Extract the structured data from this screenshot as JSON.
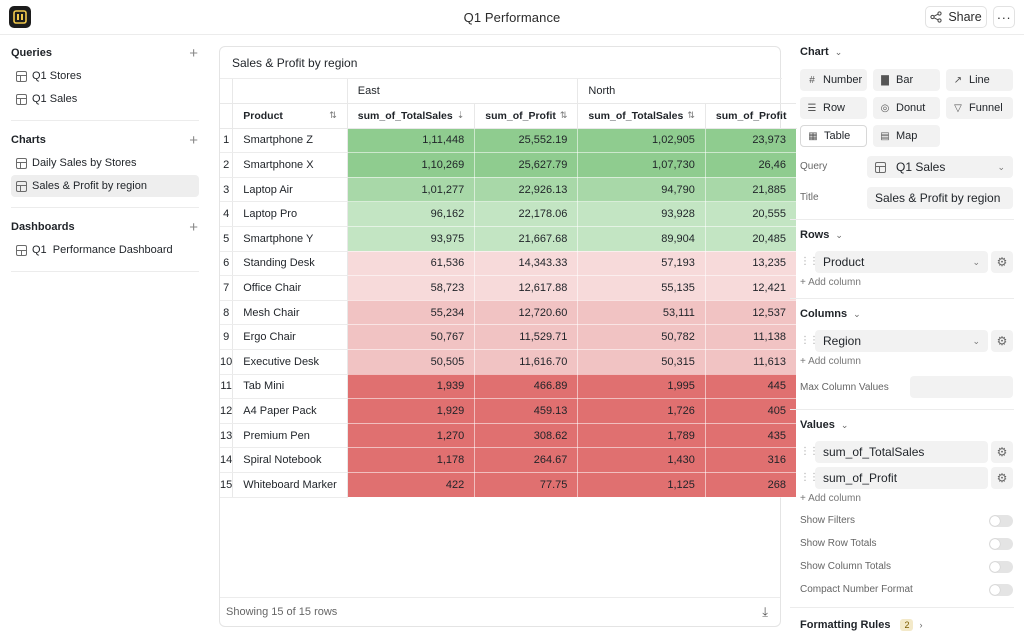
{
  "header": {
    "title": "Q1 Performance",
    "share_label": "Share",
    "more_label": "···"
  },
  "sidebar": {
    "queries_title": "Queries",
    "queries": [
      {
        "label": "Q1 Stores"
      },
      {
        "label": "Q1 Sales"
      }
    ],
    "charts_title": "Charts",
    "charts": [
      {
        "label": "Daily Sales by Stores",
        "active": false
      },
      {
        "label": "Sales & Profit by region",
        "active": true
      }
    ],
    "dashboards_title": "Dashboards",
    "dashboards": [
      {
        "label": "Q1  Performance Dashboard"
      }
    ]
  },
  "card": {
    "title": "Sales & Profit by region",
    "footer": "Showing 15 of 15 rows"
  },
  "table": {
    "product_header": "Product",
    "regions": [
      "East",
      "North"
    ],
    "value_headers": [
      "sum_of_TotalSales",
      "sum_of_Profit",
      "sum_of_TotalSales",
      "sum_of_Profit"
    ],
    "rows": [
      {
        "n": "1",
        "product": "Smartphone Z",
        "values": [
          "1,11,448",
          "25,552.19",
          "1,02,905",
          "23,973"
        ]
      },
      {
        "n": "2",
        "product": "Smartphone X",
        "values": [
          "1,10,269",
          "25,627.79",
          "1,07,730",
          "26,46"
        ]
      },
      {
        "n": "3",
        "product": "Laptop Air",
        "values": [
          "1,01,277",
          "22,926.13",
          "94,790",
          "21,885"
        ]
      },
      {
        "n": "4",
        "product": "Laptop Pro",
        "values": [
          "96,162",
          "22,178.06",
          "93,928",
          "20,555"
        ]
      },
      {
        "n": "5",
        "product": "Smartphone Y",
        "values": [
          "93,975",
          "21,667.68",
          "89,904",
          "20,485"
        ]
      },
      {
        "n": "6",
        "product": "Standing Desk",
        "values": [
          "61,536",
          "14,343.33",
          "57,193",
          "13,235"
        ]
      },
      {
        "n": "7",
        "product": "Office Chair",
        "values": [
          "58,723",
          "12,617.88",
          "55,135",
          "12,421"
        ]
      },
      {
        "n": "8",
        "product": "Mesh Chair",
        "values": [
          "55,234",
          "12,720.60",
          "53,111",
          "12,537"
        ]
      },
      {
        "n": "9",
        "product": "Ergo Chair",
        "values": [
          "50,767",
          "11,529.71",
          "50,782",
          "11,138"
        ]
      },
      {
        "n": "10",
        "product": "Executive Desk",
        "values": [
          "50,505",
          "11,616.70",
          "50,315",
          "11,613"
        ]
      },
      {
        "n": "11",
        "product": "Tab Mini",
        "values": [
          "1,939",
          "466.89",
          "1,995",
          "445"
        ]
      },
      {
        "n": "12",
        "product": "A4 Paper Pack",
        "values": [
          "1,929",
          "459.13",
          "1,726",
          "405"
        ]
      },
      {
        "n": "13",
        "product": "Premium Pen",
        "values": [
          "1,270",
          "308.62",
          "1,789",
          "435"
        ]
      },
      {
        "n": "14",
        "product": "Spiral Notebook",
        "values": [
          "1,178",
          "264.67",
          "1,430",
          "316"
        ]
      },
      {
        "n": "15",
        "product": "Whiteboard Marker",
        "values": [
          "422",
          "77.75",
          "1,125",
          "268"
        ]
      }
    ],
    "row_colors": [
      "#8fcc8f",
      "#8fcc8f",
      "#a8d8a8",
      "#c3e5c3",
      "#c3e5c3",
      "#f7dada",
      "#f7dada",
      "#f1c3c3",
      "#f1c3c3",
      "#f1c3c3",
      "#e07070",
      "#e07070",
      "#e07070",
      "#e07070",
      "#e07070"
    ]
  },
  "panel": {
    "chart_title": "Chart",
    "chart_types": [
      "Number",
      "Bar",
      "Line",
      "Row",
      "Donut",
      "Funnel",
      "Table",
      "Map"
    ],
    "chart_type_icons": [
      "#",
      "▇",
      "↗",
      "☰",
      "◎",
      "▽",
      "▦",
      "▤"
    ],
    "selected_type": "Table",
    "query_label": "Query",
    "query_value": "Q1 Sales",
    "title_label": "Title",
    "title_value": "Sales & Profit by region",
    "rows_title": "Rows",
    "rows_field": "Product",
    "columns_title": "Columns",
    "columns_field": "Region",
    "add_column": "+ Add column",
    "max_col_label": "Max Column Values",
    "max_col_value": "",
    "values_title": "Values",
    "values_fields": [
      "sum_of_TotalSales",
      "sum_of_Profit"
    ],
    "toggles": [
      "Show Filters",
      "Show Row Totals",
      "Show Column Totals",
      "Compact Number Format"
    ],
    "formatting_title": "Formatting Rules",
    "formatting_count": "2"
  }
}
